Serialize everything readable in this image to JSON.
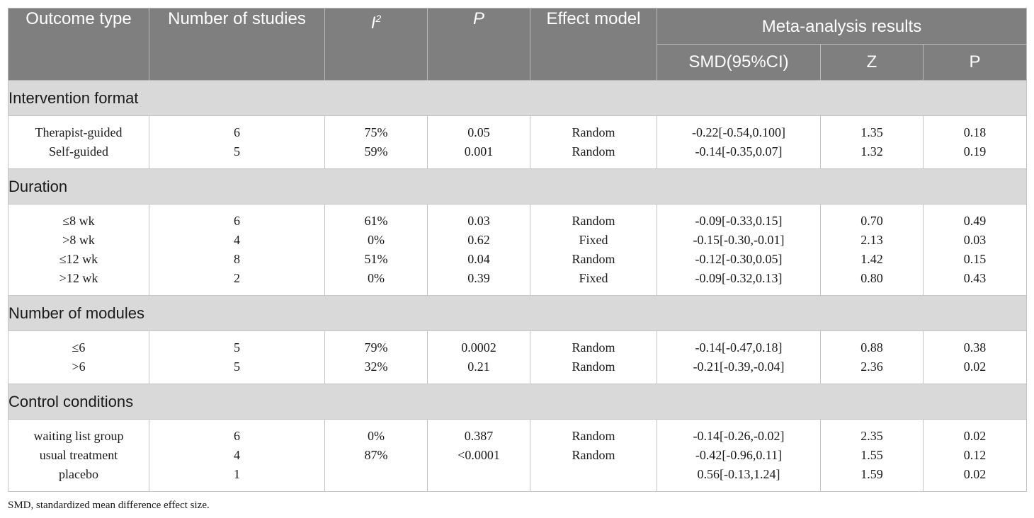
{
  "header": {
    "outcome_type": "Outcome type",
    "number_of_studies": "Number of studies",
    "i2_base": "I",
    "i2_sup": "2",
    "p": "P",
    "effect_model": "Effect model",
    "meta_results": "Meta-analysis results",
    "smd": "SMD(95%CI)",
    "z": "Z",
    "p2": "P"
  },
  "groups": [
    {
      "title": "Intervention format",
      "rows": [
        {
          "outcome": "Therapist-guided",
          "n": "6",
          "i2": "75%",
          "p": "0.05",
          "model": "Random",
          "smd": "-0.22[-0.54,0.100]",
          "z": "1.35",
          "p2": "0.18"
        },
        {
          "outcome": "Self-guided",
          "n": "5",
          "i2": "59%",
          "p": "0.001",
          "model": "Random",
          "smd": "-0.14[-0.35,0.07]",
          "z": "1.32",
          "p2": "0.19"
        }
      ]
    },
    {
      "title": "Duration",
      "rows": [
        {
          "outcome": "≤8 wk",
          "n": "6",
          "i2": "61%",
          "p": "0.03",
          "model": "Random",
          "smd": "-0.09[-0.33,0.15]",
          "z": "0.70",
          "p2": "0.49"
        },
        {
          "outcome": ">8 wk",
          "n": "4",
          "i2": "0%",
          "p": "0.62",
          "model": "Fixed",
          "smd": "-0.15[-0.30,-0.01]",
          "z": "2.13",
          "p2": "0.03"
        },
        {
          "outcome": "≤12 wk",
          "n": "8",
          "i2": "51%",
          "p": "0.04",
          "model": "Random",
          "smd": "-0.12[-0.30,0.05]",
          "z": "1.42",
          "p2": "0.15"
        },
        {
          "outcome": ">12 wk",
          "n": "2",
          "i2": "0%",
          "p": "0.39",
          "model": "Fixed",
          "smd": "-0.09[-0.32,0.13]",
          "z": "0.80",
          "p2": "0.43"
        }
      ]
    },
    {
      "title": "Number of modules",
      "rows": [
        {
          "outcome": "≤6",
          "n": "5",
          "i2": "79%",
          "p": "0.0002",
          "model": "Random",
          "smd": "-0.14[-0.47,0.18]",
          "z": "0.88",
          "p2": "0.38"
        },
        {
          "outcome": ">6",
          "n": "5",
          "i2": "32%",
          "p": "0.21",
          "model": "Random",
          "smd": "-0.21[-0.39,-0.04]",
          "z": "2.36",
          "p2": "0.02"
        }
      ]
    },
    {
      "title": "Control conditions",
      "rows": [
        {
          "outcome": "waiting list group",
          "n": "6",
          "i2": "0%",
          "p": "0.387",
          "model": "Random",
          "smd": "-0.14[-0.26,-0.02]",
          "z": "2.35",
          "p2": "0.02"
        },
        {
          "outcome": "usual treatment",
          "n": "4",
          "i2": "87%",
          "p": "<0.0001",
          "model": "Random",
          "smd": "-0.42[-0.96,0.11]",
          "z": "1.55",
          "p2": "0.12"
        },
        {
          "outcome": "placebo",
          "n": "1",
          "i2": "",
          "p": "",
          "model": "",
          "smd": "0.56[-0.13,1.24]",
          "z": "1.59",
          "p2": "0.02"
        }
      ]
    }
  ],
  "footnote": "SMD, standardized mean difference effect size."
}
